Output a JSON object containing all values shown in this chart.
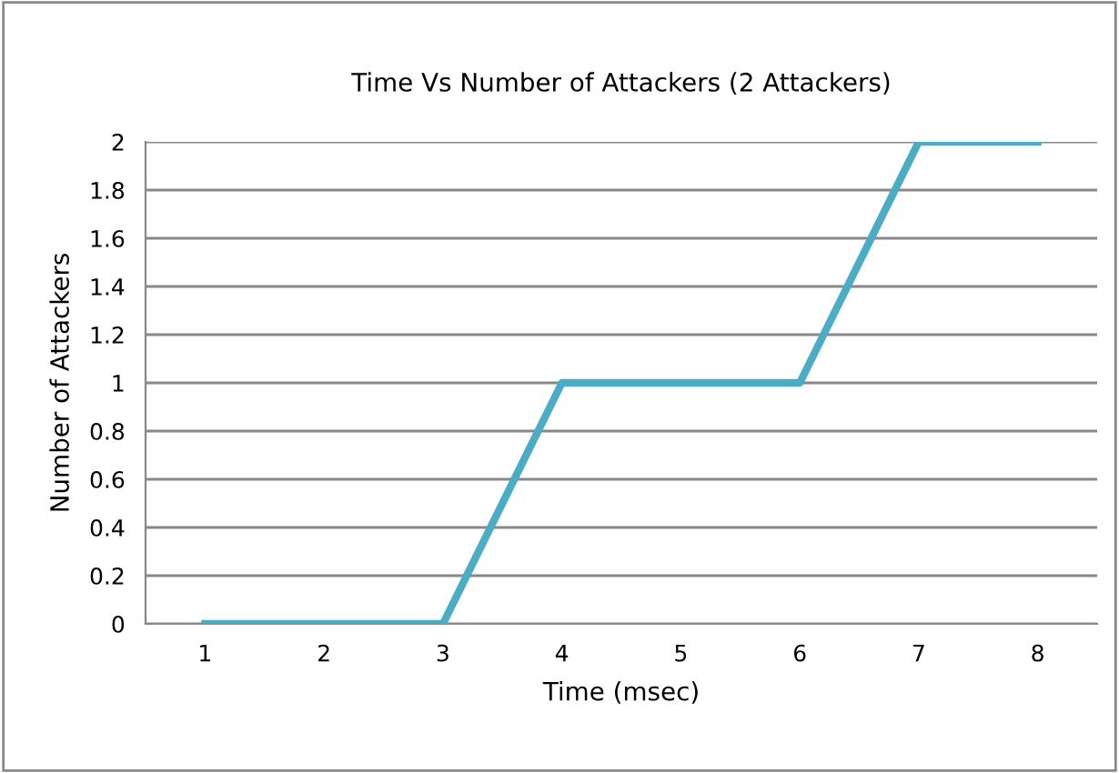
{
  "chart_data": {
    "type": "line",
    "title": "Time Vs Number of Attackers (2 Attackers)",
    "xlabel": "Time (msec)",
    "ylabel": "Number of Attackers",
    "categories": [
      "1",
      "2",
      "3",
      "4",
      "5",
      "6",
      "7",
      "8"
    ],
    "series": [
      {
        "color": "#4bacc6",
        "values": [
          0,
          0,
          0,
          1,
          1,
          1,
          2,
          2
        ]
      }
    ],
    "ylim": [
      0,
      2
    ],
    "yticks": [
      0,
      0.2,
      0.4,
      0.6,
      0.8,
      1,
      1.2,
      1.4,
      1.6,
      1.8,
      2
    ],
    "grid": "y",
    "marker": "none",
    "line_style": "solid"
  }
}
